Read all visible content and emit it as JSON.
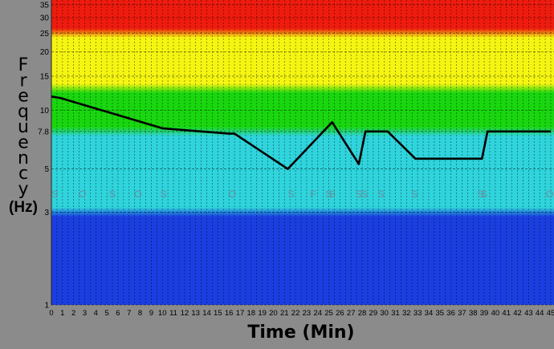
{
  "chart_data": {
    "type": "line",
    "title": "",
    "ylabel": "Frequency",
    "ylabel_unit": "(Hz)",
    "xlabel": "Time (Min)",
    "y_scale": "log",
    "ylim": [
      1,
      37
    ],
    "xlim": [
      0,
      45
    ],
    "y_ticks": [
      {
        "value": 1,
        "label": "1"
      },
      {
        "value": 3,
        "label": "3"
      },
      {
        "value": 5,
        "label": "5"
      },
      {
        "value": 7.8,
        "label": "7.8"
      },
      {
        "value": 10,
        "label": "10"
      },
      {
        "value": 15,
        "label": "15"
      },
      {
        "value": 20,
        "label": "20"
      },
      {
        "value": 25,
        "label": "25"
      },
      {
        "value": 30,
        "label": "30"
      },
      {
        "value": 35,
        "label": "35"
      }
    ],
    "x_ticks": [
      "0",
      "1",
      "2",
      "3",
      "4",
      "5",
      "6",
      "7",
      "8",
      "9",
      "10",
      "11",
      "12",
      "13",
      "14",
      "15",
      "16",
      "17",
      "18",
      "19",
      "20",
      "21",
      "22",
      "23",
      "24",
      "25",
      "26",
      "27",
      "28",
      "29",
      "30",
      "31",
      "32",
      "33",
      "34",
      "35",
      "36",
      "37",
      "38",
      "39",
      "40",
      "41",
      "42",
      "43",
      "44",
      "45"
    ],
    "bands": [
      {
        "from": 1,
        "to": 3,
        "color": "#1a3ee0"
      },
      {
        "from": 3,
        "to": 7.8,
        "color": "#2fd4dc"
      },
      {
        "from": 7.8,
        "to": 13,
        "color": "#19d60f"
      },
      {
        "from": 13,
        "to": 25,
        "color": "#f5f512"
      },
      {
        "from": 25,
        "to": 37,
        "color": "#ee1b0e"
      }
    ],
    "grid": true,
    "series": [
      {
        "color": "#000000",
        "x": [
          0,
          0.8,
          10,
          16,
          16.5,
          21.3,
          25.3,
          27.7,
          28.3,
          30.3,
          32.8,
          38.8,
          39.3,
          45
        ],
        "y": [
          11.8,
          11.6,
          8.1,
          7.6,
          7.6,
          5.0,
          8.7,
          5.3,
          7.8,
          7.8,
          5.65,
          5.65,
          7.8,
          7.8
        ]
      }
    ],
    "annotations": [
      {
        "x": 0.3,
        "text": "S"
      },
      {
        "x": 2.8,
        "text": "O"
      },
      {
        "x": 5.5,
        "text": "S"
      },
      {
        "x": 7.8,
        "text": "O"
      },
      {
        "x": 10.1,
        "text": "S"
      },
      {
        "x": 16.3,
        "text": "O"
      },
      {
        "x": 21.6,
        "text": "S"
      },
      {
        "x": 23.6,
        "text": "F"
      },
      {
        "x": 25.0,
        "text": "S"
      },
      {
        "x": 25.3,
        "text": "S"
      },
      {
        "x": 27.7,
        "text": "S"
      },
      {
        "x": 28.2,
        "text": "S"
      },
      {
        "x": 29.7,
        "text": "S"
      },
      {
        "x": 32.7,
        "text": "S"
      },
      {
        "x": 38.7,
        "text": "S"
      },
      {
        "x": 39.0,
        "text": "S"
      },
      {
        "x": 44.9,
        "text": "O"
      }
    ]
  }
}
